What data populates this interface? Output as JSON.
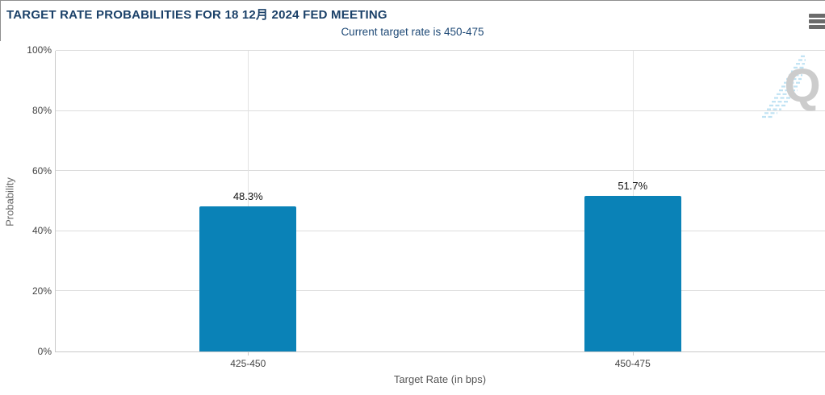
{
  "header": {
    "title": "TARGET RATE PROBABILITIES FOR 18 12月 2024 FED MEETING",
    "subtitle": "Current target rate is 450-475"
  },
  "chart_data": {
    "type": "bar",
    "title": "TARGET RATE PROBABILITIES FOR 18 12月 2024 FED MEETING",
    "subtitle": "Current target rate is 450-475",
    "categories": [
      "425-450",
      "450-475"
    ],
    "values": [
      48.3,
      51.7
    ],
    "value_labels": [
      "48.3%",
      "51.7%"
    ],
    "xlabel": "Target Rate (in bps)",
    "ylabel": "Probability",
    "ylim": [
      0,
      100
    ],
    "ytick_values": [
      0,
      20,
      40,
      60,
      80,
      100
    ],
    "ytick_labels": [
      "0%",
      "20%",
      "40%",
      "60%",
      "80%",
      "100%"
    ],
    "grid": true,
    "legend_position": "none"
  },
  "colors": {
    "bar": "#0a82b7",
    "title_text": "#1b4169",
    "subtitle_text": "#1e4976",
    "gridline": "#dcdcdc",
    "axis_line": "#c9c9c9",
    "tick_text": "#444444",
    "menu_icon": "#6b6b6b",
    "watermark_letter": "#cccccc",
    "watermark_stripes": "#bfe2f3"
  },
  "watermark": {
    "letter": "Q"
  }
}
